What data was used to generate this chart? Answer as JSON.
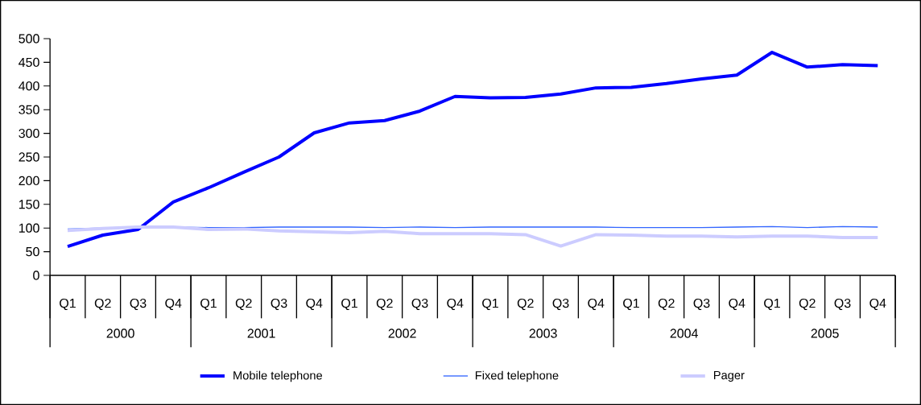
{
  "chart_data": {
    "type": "line",
    "categories": [
      "Q1",
      "Q2",
      "Q3",
      "Q4",
      "Q1",
      "Q2",
      "Q3",
      "Q4",
      "Q1",
      "Q2",
      "Q3",
      "Q4",
      "Q1",
      "Q2",
      "Q3",
      "Q4",
      "Q1",
      "Q2",
      "Q3",
      "Q4",
      "Q1",
      "Q2",
      "Q3",
      "Q4"
    ],
    "annotations": [
      "2000",
      "2001",
      "2002",
      "2003",
      "2004",
      "2005"
    ],
    "ylim": [
      0,
      500
    ],
    "yticks": [
      0,
      50,
      100,
      150,
      200,
      250,
      300,
      350,
      400,
      450,
      500
    ],
    "legend": "bottom",
    "grid": false,
    "series": [
      {
        "name": "Mobile telephone",
        "color": "#0000ff",
        "values": [
          61,
          85,
          97,
          155,
          185,
          218,
          250,
          301,
          322,
          327,
          347,
          378,
          375,
          376,
          383,
          396,
          397,
          405,
          415,
          423,
          471,
          440,
          445,
          443
        ]
      },
      {
        "name": "Fixed telephone",
        "color": "#3366ff",
        "values": [
          98,
          100,
          101,
          102,
          101,
          101,
          102,
          102,
          102,
          101,
          102,
          101,
          102,
          102,
          102,
          102,
          101,
          101,
          101,
          102,
          103,
          101,
          103,
          102
        ]
      },
      {
        "name": "Pager",
        "color": "#ccccff",
        "values": [
          95,
          99,
          102,
          102,
          97,
          98,
          94,
          92,
          90,
          93,
          88,
          88,
          88,
          86,
          62,
          86,
          85,
          83,
          83,
          81,
          83,
          83,
          80,
          80
        ]
      }
    ]
  }
}
